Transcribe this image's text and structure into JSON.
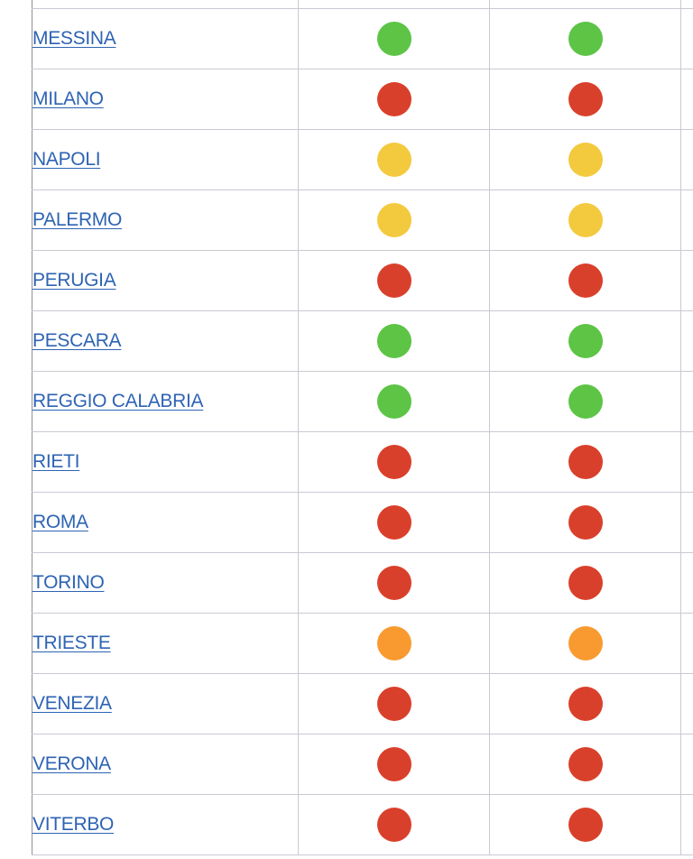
{
  "colors": {
    "green": "#5dc446",
    "red": "#d9402b",
    "yellow": "#f3c93e",
    "orange": "#f99a30",
    "link": "#2e63b3"
  },
  "rows": [
    {
      "city": "",
      "status1": null,
      "status2": null
    },
    {
      "city": "MESSINA",
      "status1": "green",
      "status2": "green"
    },
    {
      "city": "MILANO",
      "status1": "red",
      "status2": "red"
    },
    {
      "city": "NAPOLI",
      "status1": "yellow",
      "status2": "yellow"
    },
    {
      "city": "PALERMO",
      "status1": "yellow",
      "status2": "yellow"
    },
    {
      "city": "PERUGIA",
      "status1": "red",
      "status2": "red"
    },
    {
      "city": "PESCARA",
      "status1": "green",
      "status2": "green"
    },
    {
      "city": "REGGIO CALABRIA",
      "status1": "green",
      "status2": "green"
    },
    {
      "city": "RIETI",
      "status1": "red",
      "status2": "red"
    },
    {
      "city": "ROMA",
      "status1": "red",
      "status2": "red"
    },
    {
      "city": "TORINO",
      "status1": "red",
      "status2": "red"
    },
    {
      "city": "TRIESTE",
      "status1": "orange",
      "status2": "orange"
    },
    {
      "city": "VENEZIA",
      "status1": "red",
      "status2": "red"
    },
    {
      "city": "VERONA",
      "status1": "red",
      "status2": "red"
    },
    {
      "city": "VITERBO",
      "status1": "red",
      "status2": "red"
    }
  ]
}
